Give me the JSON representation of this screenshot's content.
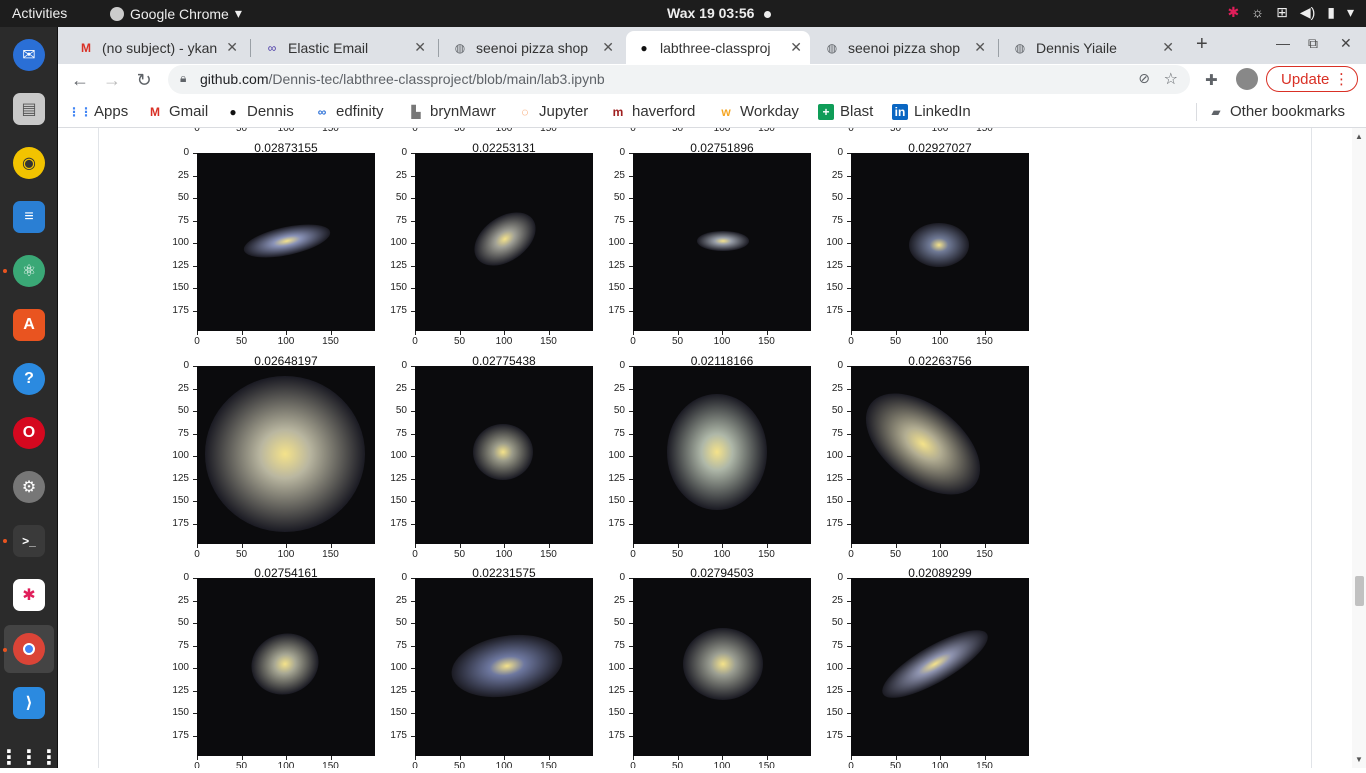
{
  "topbar": {
    "activities": "Activities",
    "app_name": "Google Chrome",
    "clock": "Wax 19  03:56"
  },
  "tabs": [
    {
      "title": "(no subject) - ykan",
      "favicon": "gmail-icon"
    },
    {
      "title": "Elastic Email",
      "favicon": "elastic-email-icon"
    },
    {
      "title": "seenoi pizza shop",
      "favicon": "globe-icon"
    },
    {
      "title": "labthree-classproj",
      "favicon": "github-icon",
      "active": true
    },
    {
      "title": "seenoi pizza shop",
      "favicon": "globe-icon"
    },
    {
      "title": "Dennis Yiaile",
      "favicon": "globe-icon"
    }
  ],
  "omnibox": {
    "host": "github.com",
    "path": "/Dennis-tec/labthree-classproject/blob/main/lab3.ipynb"
  },
  "update_label": "Update",
  "bookmarks": [
    {
      "label": "Apps",
      "icon": "apps-grid-icon"
    },
    {
      "label": "Gmail",
      "icon": "gmail-icon"
    },
    {
      "label": "Dennis",
      "icon": "github-icon"
    },
    {
      "label": "edfinity",
      "icon": "edfinity-icon"
    },
    {
      "label": "brynMawr",
      "icon": "brynmawr-icon"
    },
    {
      "label": "Jupyter",
      "icon": "jupyter-icon"
    },
    {
      "label": "haverford",
      "icon": "haverford-icon"
    },
    {
      "label": "Workday",
      "icon": "workday-icon"
    },
    {
      "label": "Blast",
      "icon": "blast-icon"
    },
    {
      "label": "LinkedIn",
      "icon": "linkedin-icon"
    }
  ],
  "other_bookmarks": "Other bookmarks",
  "notebook": {
    "y_ticks": [
      "0",
      "25",
      "50",
      "75",
      "100",
      "125",
      "150",
      "175"
    ],
    "x_ticks": [
      "0",
      "50",
      "100",
      "150"
    ],
    "panels": [
      {
        "title": "0.02873155",
        "galaxy": {
          "cx": 90,
          "cy": 88,
          "rx": 44,
          "ry": 14,
          "rot": -12,
          "color": "#8a93b8"
        }
      },
      {
        "title": "0.02253131",
        "galaxy": {
          "cx": 90,
          "cy": 86,
          "rx": 34,
          "ry": 22,
          "rot": -35,
          "color": "#a0a096"
        }
      },
      {
        "title": "0.02751896",
        "galaxy": {
          "cx": 90,
          "cy": 88,
          "rx": 26,
          "ry": 10,
          "rot": 0,
          "color": "#9aa0aa"
        }
      },
      {
        "title": "0.02927027",
        "galaxy": {
          "cx": 88,
          "cy": 92,
          "rx": 30,
          "ry": 22,
          "rot": 0,
          "color": "#707a96"
        }
      },
      {
        "title": "0.02648197",
        "galaxy": {
          "cx": 88,
          "cy": 88,
          "rx": 80,
          "ry": 78,
          "rot": 0,
          "color": "#b9b6a0"
        }
      },
      {
        "title": "0.02775438",
        "galaxy": {
          "cx": 88,
          "cy": 86,
          "rx": 30,
          "ry": 28,
          "rot": 0,
          "color": "#9c9c8a"
        }
      },
      {
        "title": "0.02118166",
        "galaxy": {
          "cx": 84,
          "cy": 86,
          "rx": 50,
          "ry": 58,
          "rot": 0,
          "color": "#aeb7a8"
        }
      },
      {
        "title": "0.02263756",
        "galaxy": {
          "cx": 72,
          "cy": 78,
          "rx": 66,
          "ry": 38,
          "rot": 38,
          "color": "#b2ad92"
        }
      },
      {
        "title": "0.02754161",
        "galaxy": {
          "cx": 88,
          "cy": 86,
          "rx": 34,
          "ry": 30,
          "rot": -20,
          "color": "#a7a794"
        }
      },
      {
        "title": "0.02231575",
        "galaxy": {
          "cx": 92,
          "cy": 88,
          "rx": 56,
          "ry": 30,
          "rot": -10,
          "color": "#6e78a0"
        }
      },
      {
        "title": "0.02794503",
        "galaxy": {
          "cx": 90,
          "cy": 86,
          "rx": 40,
          "ry": 36,
          "rot": 0,
          "color": "#9b9e92"
        }
      },
      {
        "title": "0.02089299",
        "galaxy": {
          "cx": 84,
          "cy": 86,
          "rx": 60,
          "ry": 18,
          "rot": -30,
          "color": "#8f94b0"
        }
      }
    ]
  }
}
